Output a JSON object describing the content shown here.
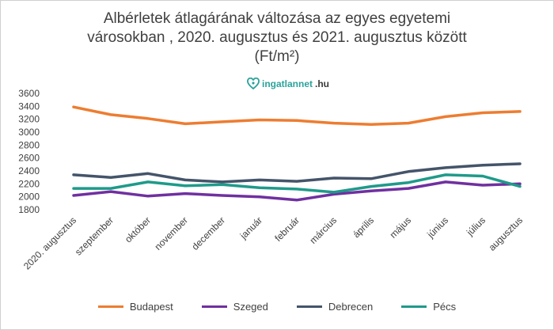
{
  "chart_data": {
    "type": "line",
    "title_line1": "Albérletek átlagárának változása az egyes egyetemi",
    "title_line2": "városokban , 2020. augusztus és 2021. augusztus között",
    "title_line3": "(Ft/m²)",
    "logo_text_1": "ingatlannet",
    "logo_text_2": ".hu",
    "categories": [
      "2020. augusztus",
      "szeptember",
      "október",
      "november",
      "december",
      "január",
      "február",
      "március",
      "április",
      "május",
      "június",
      "július",
      "augusztus"
    ],
    "ylim": [
      1800,
      3600
    ],
    "yticks": [
      1800,
      2000,
      2200,
      2400,
      2600,
      2800,
      3000,
      3200,
      3400,
      3600
    ],
    "grid": false,
    "legend_position": "bottom",
    "series": [
      {
        "name": "Budapest",
        "color": "#ED7D31",
        "values": [
          3390,
          3270,
          3210,
          3130,
          3160,
          3190,
          3180,
          3140,
          3120,
          3140,
          3240,
          3300,
          3320
        ]
      },
      {
        "name": "Szeged",
        "color": "#7030A0",
        "values": [
          2020,
          2080,
          2010,
          2050,
          2020,
          2000,
          1950,
          2040,
          2090,
          2130,
          2230,
          2180,
          2200
        ]
      },
      {
        "name": "Debrecen",
        "color": "#44546A",
        "values": [
          2340,
          2300,
          2360,
          2260,
          2230,
          2260,
          2240,
          2290,
          2280,
          2390,
          2450,
          2490,
          2510
        ]
      },
      {
        "name": "Pécs",
        "color": "#1F9A8A",
        "values": [
          2130,
          2130,
          2230,
          2170,
          2190,
          2140,
          2120,
          2070,
          2160,
          2220,
          2340,
          2320,
          2160
        ]
      }
    ]
  }
}
